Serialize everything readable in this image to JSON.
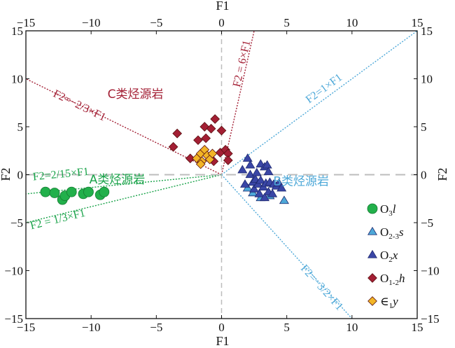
{
  "chart_data": {
    "type": "scatter",
    "xlabel": "F1",
    "ylabel": "F2",
    "xlim": [
      -15,
      15
    ],
    "ylim": [
      -15,
      15
    ],
    "x_ticks": [
      -15,
      -10,
      -5,
      0,
      5,
      10,
      15
    ],
    "y_ticks": [
      -15,
      -10,
      -5,
      0,
      5,
      10,
      15
    ],
    "grid": false,
    "legend_position": "bottom-right",
    "reference_lines": [
      {
        "label": "F2=−2/3×F1",
        "slope": -0.6667,
        "color": "#a31f34"
      },
      {
        "label": "F2 = 6×F1",
        "slope": 6,
        "color": "#a31f34"
      },
      {
        "label": "F2=1×F1",
        "slope": 1,
        "color": "#4da8d8"
      },
      {
        "label": "F2=2/15×F1",
        "slope": 0.1333,
        "color": "#1aa34a"
      },
      {
        "label": "F2 = 1/3×F1",
        "slope": 0.3333,
        "color": "#1aa34a"
      },
      {
        "label": "F2=−3/2×F1",
        "slope": -1.5,
        "color": "#4da8d8"
      }
    ],
    "region_labels": [
      {
        "text": "C类烃源岩",
        "color": "#a31f34"
      },
      {
        "text": "A类烃源岩",
        "color": "#1aa34a"
      },
      {
        "text": "B类烃源岩",
        "color": "#4da8d8"
      }
    ],
    "series": [
      {
        "name": "O3l",
        "label_html": [
          "O",
          "3",
          "l"
        ],
        "marker": "circle",
        "color": "#22b04b",
        "points": [
          [
            -13.5,
            -1.8
          ],
          [
            -12.8,
            -1.9
          ],
          [
            -12.2,
            -2.6
          ],
          [
            -12.0,
            -2.2
          ],
          [
            -11.5,
            -1.8
          ],
          [
            -10.6,
            -2.0
          ],
          [
            -10.2,
            -1.8
          ],
          [
            -9.3,
            -2.1
          ],
          [
            -9.0,
            -1.8
          ]
        ]
      },
      {
        "name": "O2-3s",
        "label_html": [
          "O",
          "2-3",
          "s"
        ],
        "marker": "triangle",
        "color": "#4da8d8",
        "points": [
          [
            2.0,
            -1.4
          ],
          [
            2.4,
            -1.9
          ],
          [
            3.0,
            -2.4
          ],
          [
            3.7,
            -2.2
          ],
          [
            4.8,
            -2.7
          ]
        ]
      },
      {
        "name": "O2x",
        "label_html": [
          "O",
          "2",
          "x"
        ],
        "marker": "triangle",
        "color": "#3a46a6",
        "points": [
          [
            1.6,
            0.5
          ],
          [
            1.8,
            -1.0
          ],
          [
            2.0,
            1.7
          ],
          [
            2.2,
            0.0
          ],
          [
            2.2,
            1.0
          ],
          [
            2.4,
            -0.8
          ],
          [
            2.5,
            -1.5
          ],
          [
            2.6,
            -0.5
          ],
          [
            2.7,
            0.2
          ],
          [
            2.8,
            -1.0
          ],
          [
            3.0,
            1.1
          ],
          [
            3.0,
            -0.6
          ],
          [
            3.2,
            -1.3
          ],
          [
            3.3,
            0.8
          ],
          [
            3.4,
            -0.9
          ],
          [
            3.5,
            1.0
          ],
          [
            3.6,
            -1.8
          ],
          [
            3.6,
            0.3
          ],
          [
            3.7,
            -0.8
          ],
          [
            3.9,
            -2.0
          ],
          [
            4.0,
            -1.0
          ],
          [
            4.2,
            -1.2
          ],
          [
            4.4,
            -0.9
          ],
          [
            4.6,
            -1.4
          ],
          [
            2.9,
            -2.0
          ],
          [
            3.3,
            -2.4
          ]
        ]
      },
      {
        "name": "O1-2h",
        "label_html": [
          "O",
          "1-2",
          "h"
        ],
        "marker": "diamond",
        "color": "#a31f34",
        "points": [
          [
            -3.7,
            2.9
          ],
          [
            -3.4,
            4.3
          ],
          [
            -2.4,
            1.7
          ],
          [
            -1.8,
            3.6
          ],
          [
            -1.2,
            3.8
          ],
          [
            -1.3,
            5.0
          ],
          [
            -0.8,
            4.8
          ],
          [
            -0.5,
            5.8
          ],
          [
            -0.6,
            1.4
          ],
          [
            -0.1,
            2.3
          ],
          [
            0.0,
            4.6
          ],
          [
            0.3,
            2.6
          ],
          [
            0.5,
            2.2
          ],
          [
            0.5,
            1.5
          ]
        ]
      },
      {
        "name": "∈1y",
        "label_html": [
          "∈",
          "1",
          "y"
        ],
        "marker": "diamond",
        "color": "#f2b526",
        "points": [
          [
            -1.9,
            1.7
          ],
          [
            -1.6,
            2.2
          ],
          [
            -1.5,
            1.4
          ],
          [
            -1.3,
            2.6
          ],
          [
            -1.1,
            2.0
          ],
          [
            -0.9,
            1.6
          ],
          [
            -0.7,
            2.2
          ],
          [
            -1.6,
            1.1
          ]
        ]
      }
    ]
  }
}
